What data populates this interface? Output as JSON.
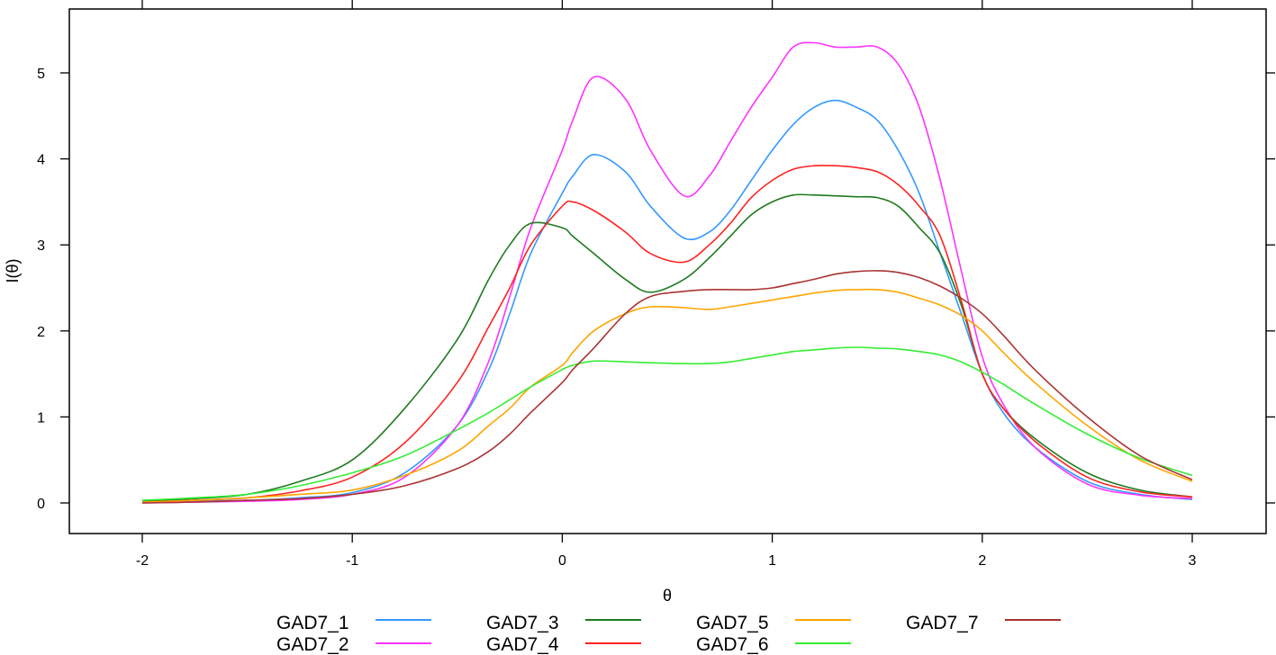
{
  "chart_data": {
    "type": "line",
    "title": "",
    "xlabel": "θ",
    "ylabel": "I(θ)",
    "xlim": [
      -2.35,
      3.35
    ],
    "ylim": [
      -0.36,
      5.75
    ],
    "xticks": [
      -2,
      -1,
      0,
      1,
      2,
      3
    ],
    "yticks": [
      0,
      1,
      2,
      3,
      4,
      5
    ],
    "grid": false,
    "legend_position": "bottom",
    "x": [
      -2.0,
      -1.75,
      -1.5,
      -1.25,
      -1.0,
      -0.75,
      -0.5,
      -0.35,
      -0.25,
      -0.15,
      0.0,
      0.05,
      0.15,
      0.3,
      0.42,
      0.58,
      0.7,
      0.8,
      0.9,
      1.0,
      1.1,
      1.2,
      1.3,
      1.4,
      1.5,
      1.6,
      1.7,
      1.8,
      1.9,
      2.0,
      2.1,
      2.25,
      2.5,
      2.75,
      3.0
    ],
    "series": [
      {
        "name": "GAD7_1",
        "color": "#3399FF",
        "values": [
          0.01,
          0.02,
          0.03,
          0.06,
          0.12,
          0.35,
          0.9,
          1.55,
          2.2,
          2.9,
          3.6,
          3.8,
          4.05,
          3.85,
          3.45,
          3.08,
          3.15,
          3.4,
          3.75,
          4.1,
          4.4,
          4.6,
          4.68,
          4.6,
          4.45,
          4.1,
          3.6,
          2.9,
          2.2,
          1.5,
          1.05,
          0.65,
          0.25,
          0.1,
          0.04
        ]
      },
      {
        "name": "GAD7_2",
        "color": "#FF33FF",
        "values": [
          0.0,
          0.01,
          0.02,
          0.04,
          0.1,
          0.3,
          0.9,
          1.65,
          2.4,
          3.2,
          4.1,
          4.45,
          4.95,
          4.7,
          4.1,
          3.57,
          3.8,
          4.2,
          4.6,
          4.95,
          5.3,
          5.35,
          5.3,
          5.3,
          5.3,
          5.1,
          4.6,
          3.75,
          2.7,
          1.7,
          1.15,
          0.65,
          0.22,
          0.09,
          0.05
        ]
      },
      {
        "name": "GAD7_3",
        "color": "#1E7A1E",
        "values": [
          0.02,
          0.05,
          0.1,
          0.25,
          0.5,
          1.1,
          1.9,
          2.6,
          3.0,
          3.25,
          3.2,
          3.1,
          2.9,
          2.6,
          2.45,
          2.6,
          2.85,
          3.1,
          3.35,
          3.5,
          3.58,
          3.58,
          3.57,
          3.56,
          3.55,
          3.45,
          3.2,
          2.9,
          2.3,
          1.5,
          1.1,
          0.75,
          0.35,
          0.15,
          0.07
        ]
      },
      {
        "name": "GAD7_4",
        "color": "#FF2222",
        "values": [
          0.01,
          0.03,
          0.06,
          0.14,
          0.3,
          0.7,
          1.4,
          2.05,
          2.5,
          3.0,
          3.45,
          3.5,
          3.4,
          3.15,
          2.9,
          2.8,
          3.0,
          3.25,
          3.55,
          3.75,
          3.88,
          3.92,
          3.92,
          3.9,
          3.85,
          3.7,
          3.45,
          3.1,
          2.35,
          1.5,
          1.1,
          0.72,
          0.3,
          0.13,
          0.07
        ]
      },
      {
        "name": "GAD7_5",
        "color": "#FFA500",
        "values": [
          0.01,
          0.03,
          0.06,
          0.1,
          0.15,
          0.32,
          0.6,
          0.9,
          1.1,
          1.35,
          1.6,
          1.75,
          2.0,
          2.2,
          2.28,
          2.27,
          2.25,
          2.28,
          2.32,
          2.36,
          2.4,
          2.44,
          2.47,
          2.48,
          2.48,
          2.45,
          2.38,
          2.3,
          2.18,
          2.0,
          1.75,
          1.4,
          0.9,
          0.5,
          0.25
        ]
      },
      {
        "name": "GAD7_6",
        "color": "#33EE33",
        "values": [
          0.03,
          0.06,
          0.1,
          0.2,
          0.35,
          0.55,
          0.85,
          1.05,
          1.2,
          1.35,
          1.55,
          1.6,
          1.65,
          1.64,
          1.63,
          1.62,
          1.62,
          1.64,
          1.68,
          1.72,
          1.76,
          1.78,
          1.8,
          1.81,
          1.8,
          1.79,
          1.76,
          1.72,
          1.64,
          1.52,
          1.38,
          1.15,
          0.8,
          0.52,
          0.32
        ]
      },
      {
        "name": "GAD7_7",
        "color": "#AA3333",
        "values": [
          0.0,
          0.01,
          0.03,
          0.05,
          0.1,
          0.2,
          0.4,
          0.6,
          0.8,
          1.05,
          1.4,
          1.55,
          1.8,
          2.2,
          2.4,
          2.46,
          2.48,
          2.48,
          2.48,
          2.5,
          2.55,
          2.6,
          2.66,
          2.69,
          2.7,
          2.68,
          2.62,
          2.52,
          2.38,
          2.2,
          1.95,
          1.55,
          1.0,
          0.55,
          0.27
        ]
      }
    ]
  },
  "legend": {
    "items": [
      {
        "label": "GAD7_1",
        "color": "#3399FF"
      },
      {
        "label": "GAD7_2",
        "color": "#FF33FF"
      },
      {
        "label": "GAD7_3",
        "color": "#1E7A1E"
      },
      {
        "label": "GAD7_4",
        "color": "#FF2222"
      },
      {
        "label": "GAD7_5",
        "color": "#FFA500"
      },
      {
        "label": "GAD7_6",
        "color": "#33EE33"
      },
      {
        "label": "GAD7_7",
        "color": "#AA3333"
      }
    ]
  }
}
